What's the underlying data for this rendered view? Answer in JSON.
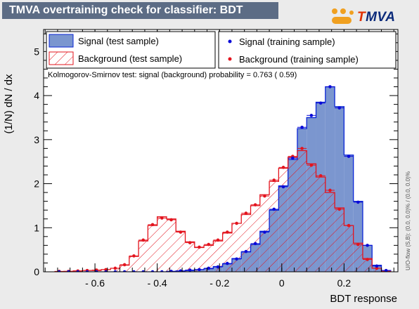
{
  "title": "TMVA overtraining check for classifier: BDT",
  "logo": {
    "first_letter": "T",
    "rest": "MVA"
  },
  "colors": {
    "background": "#ebebeb",
    "title_bar": "#5c6c85",
    "signal_fill": "#7b96cf",
    "signal_line": "#0b26d6",
    "background_line": "#e3141e",
    "signal_points": "#0a0ad8",
    "background_points": "#e3141e"
  },
  "legend": {
    "signal_test": "Signal (test sample)",
    "background_test": "Background (test sample)",
    "signal_train": "Signal (training sample)",
    "background_train": "Background (training sample)"
  },
  "ks_text": "Kolmogorov-Smirnov test: signal (background) probability = 0.763 ( 0.59)",
  "side_text": "U/O-flow (S,B): (0.0, 0.0)% / (0.0, 0.0)%",
  "chart_data": {
    "type": "bar",
    "xlabel": "BDT response",
    "ylabel": "(1/N) dN / dx",
    "xlim": [
      -0.765,
      0.373
    ],
    "ylim": [
      0,
      5.5
    ],
    "xticks": [
      {
        "v": -0.6,
        "label": "- 0.6"
      },
      {
        "v": -0.4,
        "label": "- 0.4"
      },
      {
        "v": -0.2,
        "label": "- 0.2"
      },
      {
        "v": 0,
        "label": "0"
      },
      {
        "v": 0.2,
        "label": "0.2"
      }
    ],
    "yticks": [
      0,
      1,
      2,
      3,
      4,
      5
    ],
    "bin_start": -0.73,
    "bin_width": 0.03,
    "series": [
      {
        "name": "Signal (test sample)",
        "values": [
          0,
          0,
          0,
          0,
          0,
          0,
          0,
          0,
          0,
          0,
          0,
          0,
          0.01,
          0.02,
          0.03,
          0.05,
          0.07,
          0.12,
          0.18,
          0.3,
          0.45,
          0.62,
          0.92,
          1.4,
          1.95,
          2.55,
          3.25,
          3.5,
          3.85,
          4.2,
          3.75,
          2.65,
          1.6,
          0.6,
          0.15,
          0.03
        ]
      },
      {
        "name": "Background (test sample)",
        "values": [
          0,
          0.01,
          0.02,
          0.03,
          0.03,
          0.05,
          0.08,
          0.15,
          0.35,
          0.7,
          1.05,
          1.25,
          1.2,
          0.92,
          0.68,
          0.55,
          0.6,
          0.7,
          0.88,
          1.1,
          1.3,
          1.5,
          1.75,
          2.05,
          2.35,
          2.6,
          2.75,
          2.45,
          2.15,
          1.8,
          1.45,
          1.05,
          0.65,
          0.3,
          0.08,
          0.01
        ]
      },
      {
        "name": "Signal (training sample)",
        "values": [
          0,
          0,
          0,
          0,
          0,
          0,
          0,
          0,
          0,
          0,
          0,
          0,
          0.01,
          0.02,
          0.04,
          0.05,
          0.08,
          0.11,
          0.19,
          0.29,
          0.46,
          0.64,
          0.9,
          1.42,
          1.93,
          2.58,
          3.28,
          3.55,
          3.83,
          4.2,
          3.72,
          2.62,
          1.58,
          0.6,
          0.13,
          0.03
        ]
      },
      {
        "name": "Background (training sample)",
        "values": [
          0.01,
          0.01,
          0.02,
          0.03,
          0.04,
          0.05,
          0.08,
          0.16,
          0.36,
          0.72,
          1.07,
          1.22,
          1.18,
          0.9,
          0.66,
          0.56,
          0.62,
          0.72,
          0.9,
          1.1,
          1.33,
          1.52,
          1.72,
          2.08,
          2.37,
          2.62,
          2.8,
          2.42,
          2.18,
          1.85,
          1.42,
          1.05,
          0.62,
          0.28,
          0.08,
          0.01
        ]
      }
    ]
  }
}
